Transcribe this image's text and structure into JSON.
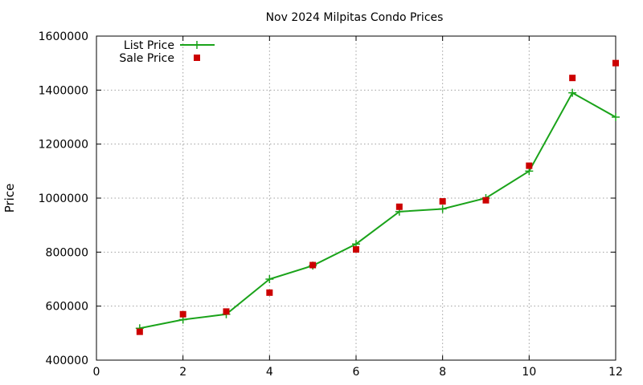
{
  "chart_data": {
    "type": "line",
    "title": "Nov 2024 Milpitas Condo Prices",
    "xlabel": "",
    "ylabel": "Price",
    "xlim": [
      0,
      12
    ],
    "ylim": [
      400000,
      1600000
    ],
    "x_ticks": [
      0,
      2,
      4,
      6,
      8,
      10,
      12
    ],
    "y_ticks": [
      400000,
      600000,
      800000,
      1000000,
      1200000,
      1400000,
      1600000
    ],
    "grid": true,
    "legend_position": "top-left",
    "series": [
      {
        "name": "List Price",
        "style": "line-with-plus-markers",
        "color": "#1aa31a",
        "x": [
          1,
          2,
          3,
          4,
          5,
          6,
          7,
          8,
          9,
          10,
          11,
          12
        ],
        "y": [
          518000,
          550000,
          570000,
          700000,
          750000,
          830000,
          950000,
          960000,
          1000000,
          1100000,
          1390000,
          1300000
        ]
      },
      {
        "name": "Sale Price",
        "style": "square-markers",
        "color": "#cc0000",
        "x": [
          1,
          2,
          3,
          4,
          5,
          6,
          7,
          8,
          9,
          10,
          11,
          12
        ],
        "y": [
          505000,
          570000,
          580000,
          650000,
          752000,
          810000,
          968000,
          988000,
          992000,
          1120000,
          1445000,
          1500000
        ]
      }
    ]
  }
}
